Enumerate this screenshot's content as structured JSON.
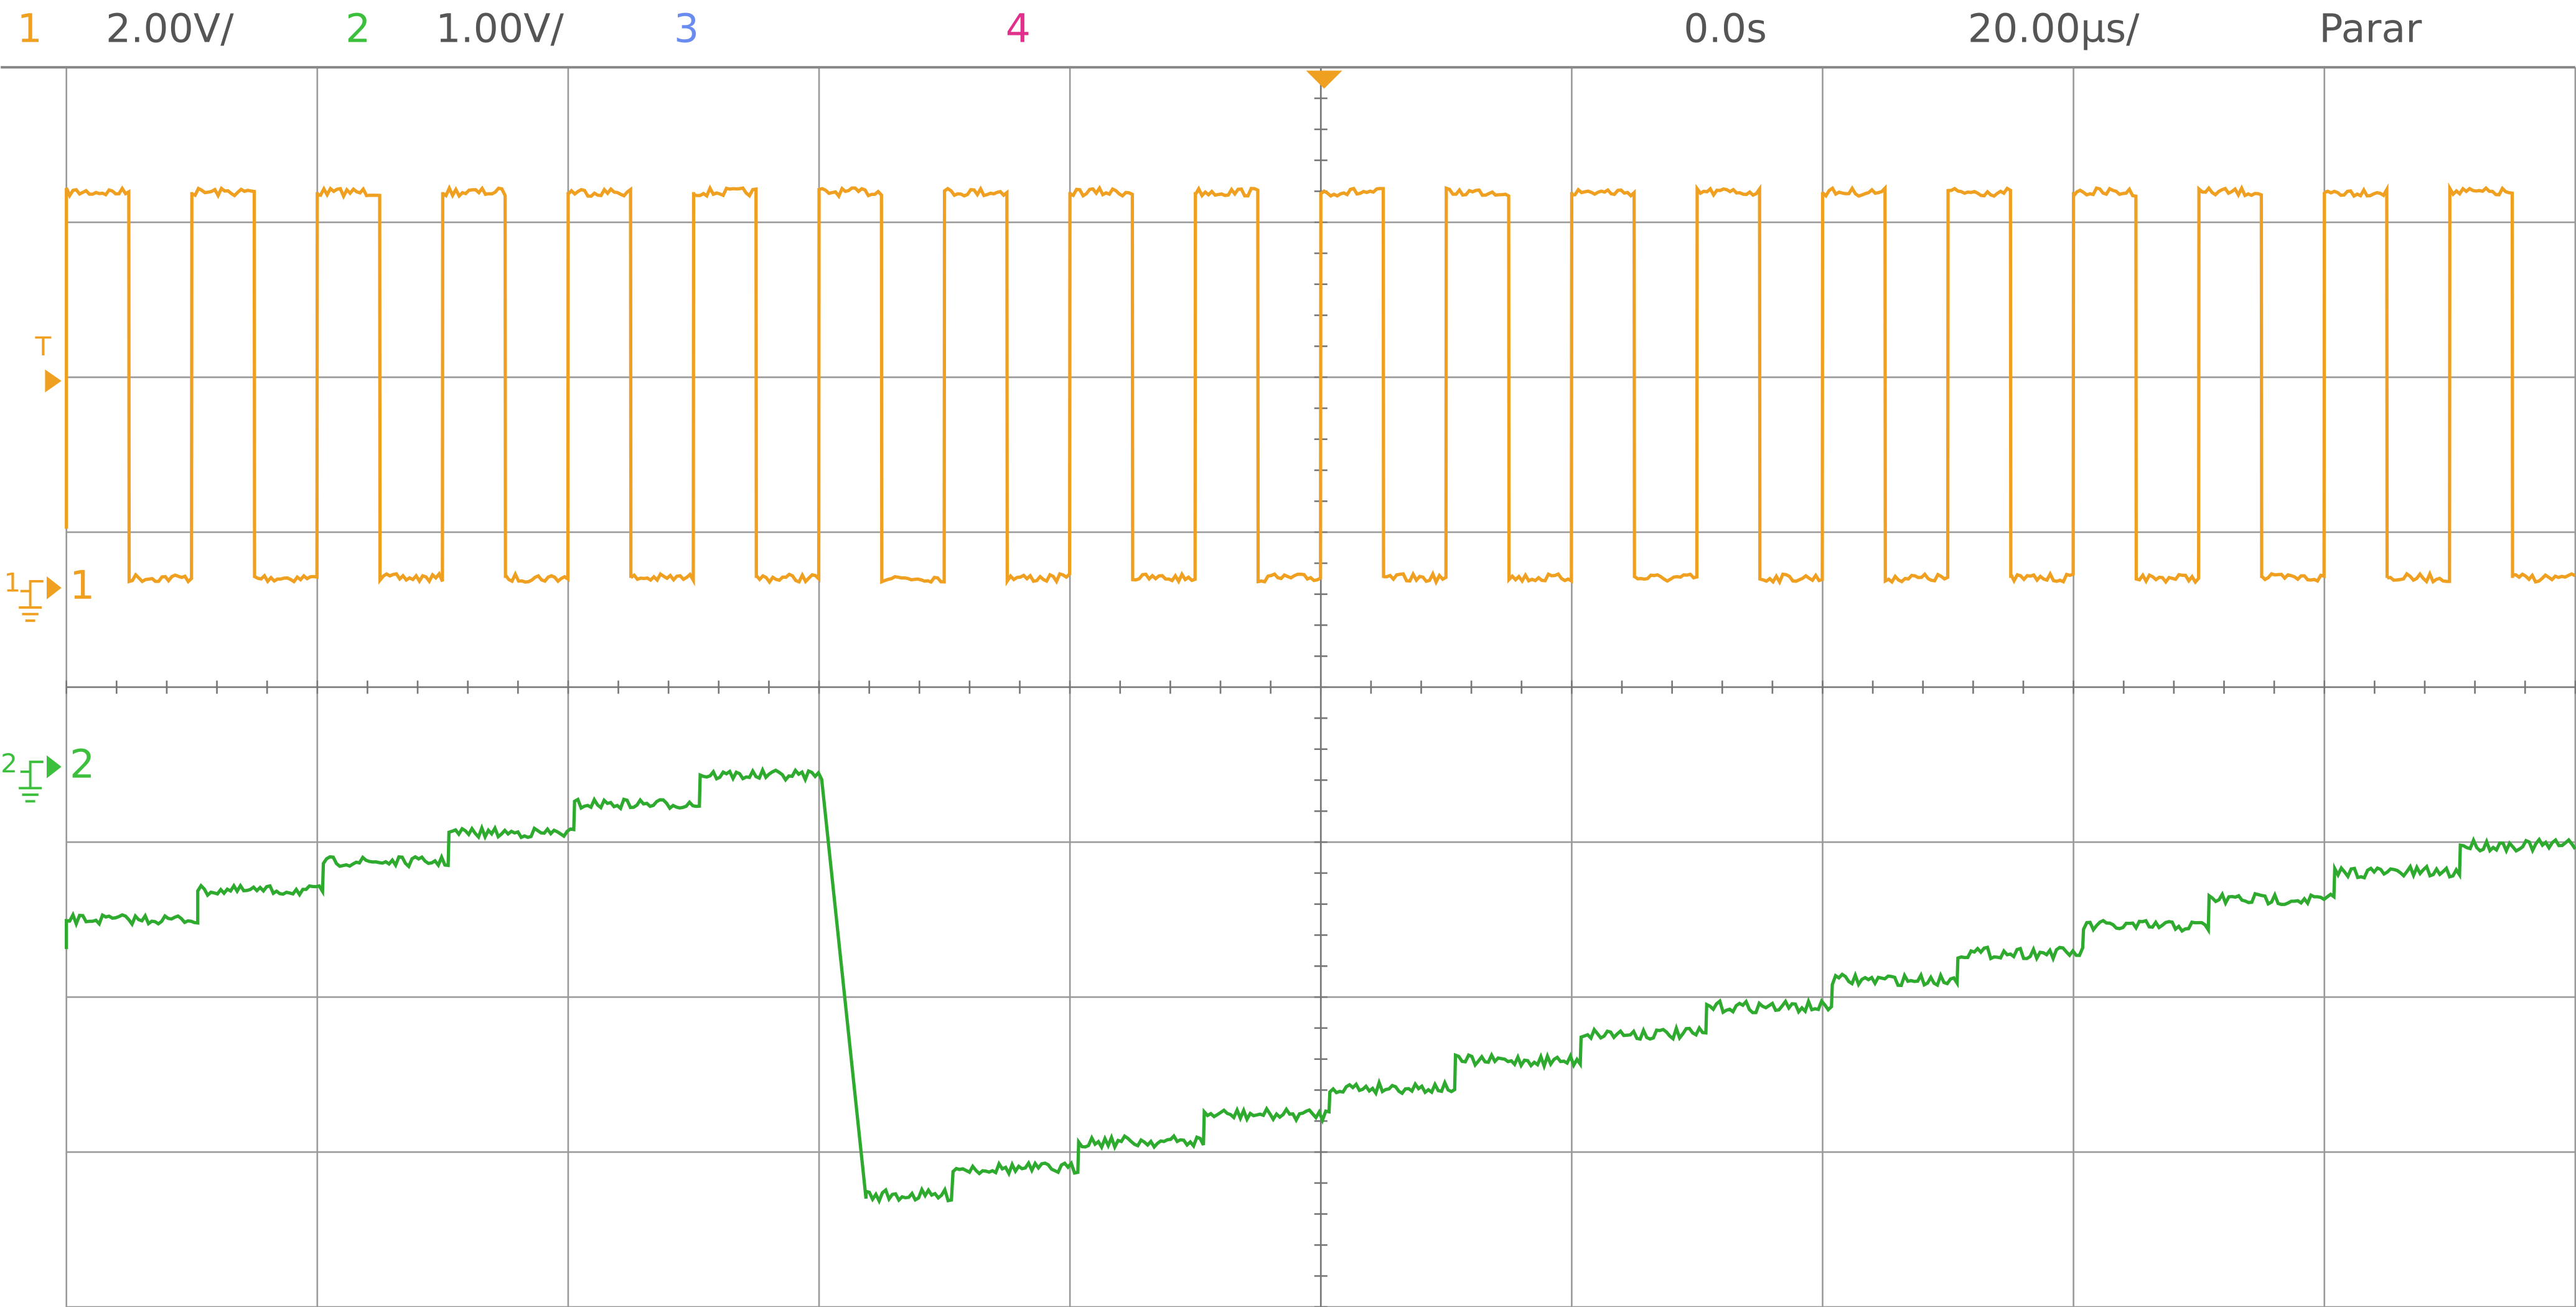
{
  "header": {
    "ch1_label": "1",
    "ch1_scale": "2.00V/",
    "ch2_label": "2",
    "ch2_scale": "1.00V/",
    "ch3_label": "3",
    "ch4_label": "4",
    "time_offset": "0.0s",
    "time_scale": "20.00µs/",
    "run_state": "Parar"
  },
  "markers": {
    "trigger": "T",
    "ch1": "1",
    "ch2": "2"
  }
}
